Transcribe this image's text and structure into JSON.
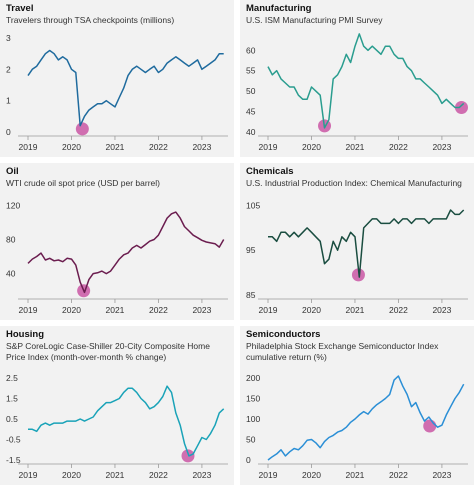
{
  "chart_data": [
    {
      "type": "line",
      "title": "Travel",
      "subtitle": "Travelers through TSA checkpoints (millions)",
      "color": "#1f6b9e",
      "highlight_color": "#cc5fa8",
      "ylim": [
        0,
        3
      ],
      "yticks": [
        "0",
        "1",
        "2",
        "3"
      ],
      "ytick_values": [
        0,
        1,
        2,
        3
      ],
      "xlim": [
        2019,
        2023.6
      ],
      "xticks": [
        "2019",
        "2020",
        "2021",
        "2022",
        "2023"
      ],
      "xtick_values": [
        2019,
        2020,
        2021,
        2022,
        2023
      ],
      "x": [
        2019.0,
        2019.1,
        2019.2,
        2019.3,
        2019.4,
        2019.5,
        2019.6,
        2019.7,
        2019.8,
        2019.9,
        2020.0,
        2020.1,
        2020.2,
        2020.3,
        2020.4,
        2020.5,
        2020.6,
        2020.7,
        2020.8,
        2020.9,
        2021.0,
        2021.1,
        2021.2,
        2021.3,
        2021.4,
        2021.5,
        2021.6,
        2021.7,
        2021.8,
        2021.9,
        2022.0,
        2022.1,
        2022.2,
        2022.3,
        2022.4,
        2022.5,
        2022.6,
        2022.7,
        2022.8,
        2022.9,
        2023.0,
        2023.1,
        2023.2,
        2023.3,
        2023.4,
        2023.5
      ],
      "values": [
        1.8,
        2.0,
        2.1,
        2.3,
        2.5,
        2.6,
        2.5,
        2.3,
        2.4,
        2.3,
        2.0,
        1.9,
        0.2,
        0.5,
        0.7,
        0.8,
        0.9,
        0.9,
        1.0,
        0.9,
        0.8,
        1.1,
        1.4,
        1.8,
        2.0,
        2.1,
        2.0,
        1.9,
        2.0,
        2.1,
        1.9,
        2.0,
        2.2,
        2.3,
        2.4,
        2.3,
        2.2,
        2.1,
        2.2,
        2.3,
        2.0,
        2.1,
        2.2,
        2.3,
        2.5,
        2.5
      ],
      "highlight": {
        "x": 2020.25,
        "y": 0.1
      }
    },
    {
      "type": "line",
      "title": "Manufacturing",
      "subtitle": "U.S. ISM Manufacturing PMI Survey",
      "color": "#2a9d8f",
      "highlight_color": "#cc5fa8",
      "ylim": [
        40,
        63
      ],
      "yticks": [
        "40",
        "45",
        "50",
        "55",
        "60"
      ],
      "ytick_values": [
        40,
        45,
        50,
        55,
        60
      ],
      "xlim": [
        2019,
        2023.6
      ],
      "xticks": [
        "2019",
        "2020",
        "2021",
        "2022",
        "2023"
      ],
      "xtick_values": [
        2019,
        2020,
        2021,
        2022,
        2023
      ],
      "x": [
        2019.0,
        2019.1,
        2019.2,
        2019.3,
        2019.4,
        2019.5,
        2019.6,
        2019.7,
        2019.8,
        2019.9,
        2020.0,
        2020.1,
        2020.2,
        2020.3,
        2020.4,
        2020.5,
        2020.6,
        2020.7,
        2020.8,
        2020.9,
        2021.0,
        2021.1,
        2021.2,
        2021.3,
        2021.4,
        2021.5,
        2021.6,
        2021.7,
        2021.8,
        2021.9,
        2022.0,
        2022.1,
        2022.2,
        2022.3,
        2022.4,
        2022.5,
        2022.6,
        2022.7,
        2022.8,
        2022.9,
        2023.0,
        2023.1,
        2023.2,
        2023.3,
        2023.4,
        2023.5
      ],
      "values": [
        56,
        54,
        55,
        53,
        52,
        51,
        51,
        49,
        48,
        48,
        51,
        50,
        49,
        41,
        43,
        53,
        54,
        56,
        59,
        57,
        61,
        64,
        61,
        60,
        61,
        60,
        59,
        61,
        61,
        59,
        58,
        58,
        56,
        55,
        53,
        53,
        52,
        51,
        50,
        49,
        47,
        48,
        47,
        46,
        46,
        47
      ],
      "highlight": {
        "x": 2020.3,
        "y": 41.5
      },
      "highlight2": {
        "x": 2023.45,
        "y": 46
      }
    },
    {
      "type": "line",
      "title": "Oil",
      "subtitle": "WTI crude oil spot price (USD per barrel)",
      "color": "#6b1d4f",
      "highlight_color": "#cc5fa8",
      "ylim": [
        15,
        125
      ],
      "yticks": [
        "40",
        "80",
        "120"
      ],
      "ytick_values": [
        40,
        80,
        120
      ],
      "xlim": [
        2019,
        2023.6
      ],
      "xticks": [
        "2019",
        "2020",
        "2021",
        "2022",
        "2023"
      ],
      "xtick_values": [
        2019,
        2020,
        2021,
        2022,
        2023
      ],
      "x": [
        2019.0,
        2019.1,
        2019.2,
        2019.3,
        2019.4,
        2019.5,
        2019.6,
        2019.7,
        2019.8,
        2019.9,
        2020.0,
        2020.1,
        2020.2,
        2020.3,
        2020.4,
        2020.5,
        2020.6,
        2020.7,
        2020.8,
        2020.9,
        2021.0,
        2021.1,
        2021.2,
        2021.3,
        2021.4,
        2021.5,
        2021.6,
        2021.7,
        2021.8,
        2021.9,
        2022.0,
        2022.1,
        2022.2,
        2022.3,
        2022.4,
        2022.5,
        2022.6,
        2022.7,
        2022.8,
        2022.9,
        2023.0,
        2023.1,
        2023.2,
        2023.3,
        2023.4,
        2023.5
      ],
      "values": [
        52,
        57,
        60,
        64,
        56,
        58,
        55,
        56,
        54,
        58,
        57,
        50,
        30,
        18,
        33,
        40,
        41,
        43,
        40,
        43,
        50,
        57,
        62,
        64,
        70,
        73,
        70,
        74,
        78,
        80,
        85,
        95,
        105,
        110,
        112,
        105,
        95,
        90,
        85,
        82,
        79,
        77,
        76,
        75,
        71,
        80
      ],
      "highlight": {
        "x": 2020.28,
        "y": 20
      }
    },
    {
      "type": "line",
      "title": "Chemicals",
      "subtitle": "U.S. Industrial Production Index: Chemical Manufacturing",
      "color": "#1a4d40",
      "highlight_color": "#cc5fa8",
      "ylim": [
        85,
        106
      ],
      "yticks": [
        "85",
        "95",
        "105"
      ],
      "ytick_values": [
        85,
        95,
        105
      ],
      "xlim": [
        2019,
        2023.6
      ],
      "xticks": [
        "2019",
        "2020",
        "2021",
        "2022",
        "2023"
      ],
      "xtick_values": [
        2019,
        2020,
        2021,
        2022,
        2023
      ],
      "x": [
        2019.0,
        2019.1,
        2019.2,
        2019.3,
        2019.4,
        2019.5,
        2019.6,
        2019.7,
        2019.8,
        2019.9,
        2020.0,
        2020.1,
        2020.2,
        2020.3,
        2020.4,
        2020.5,
        2020.6,
        2020.7,
        2020.8,
        2020.9,
        2021.0,
        2021.1,
        2021.2,
        2021.3,
        2021.4,
        2021.5,
        2021.6,
        2021.7,
        2021.8,
        2021.9,
        2022.0,
        2022.1,
        2022.2,
        2022.3,
        2022.4,
        2022.5,
        2022.6,
        2022.7,
        2022.8,
        2022.9,
        2023.0,
        2023.1,
        2023.2,
        2023.3,
        2023.4,
        2023.5
      ],
      "values": [
        98,
        98,
        97,
        99,
        99,
        98,
        99,
        98,
        99,
        100,
        99,
        98,
        97,
        92,
        93,
        97,
        95,
        98,
        97,
        99,
        98,
        89,
        100,
        101,
        102,
        102,
        101,
        101,
        101,
        102,
        101,
        102,
        102,
        101,
        102,
        102,
        102,
        101,
        102,
        102,
        102,
        102,
        104,
        103,
        103,
        104
      ],
      "highlight": {
        "x": 2021.08,
        "y": 89.5
      }
    },
    {
      "type": "line",
      "title": "Housing",
      "subtitle": "S&P CoreLogic Case-Shiller 20-City Composite Home Price Index (month-over-month % change)",
      "color": "#1aa3b8",
      "highlight_color": "#cc5fa8",
      "ylim": [
        -1.5,
        2.6
      ],
      "yticks": [
        "-1.5",
        "-0.5",
        "0.5",
        "1.5",
        "2.5"
      ],
      "ytick_values": [
        -1.5,
        -0.5,
        0.5,
        1.5,
        2.5
      ],
      "xlim": [
        2019,
        2023.6
      ],
      "xticks": [
        "2019",
        "2020",
        "2021",
        "2022",
        "2023"
      ],
      "xtick_values": [
        2019,
        2020,
        2021,
        2022,
        2023
      ],
      "x": [
        2019.0,
        2019.1,
        2019.2,
        2019.3,
        2019.4,
        2019.5,
        2019.6,
        2019.7,
        2019.8,
        2019.9,
        2020.0,
        2020.1,
        2020.2,
        2020.3,
        2020.4,
        2020.5,
        2020.6,
        2020.7,
        2020.8,
        2020.9,
        2021.0,
        2021.1,
        2021.2,
        2021.3,
        2021.4,
        2021.5,
        2021.6,
        2021.7,
        2021.8,
        2021.9,
        2022.0,
        2022.1,
        2022.2,
        2022.3,
        2022.4,
        2022.5,
        2022.6,
        2022.7,
        2022.8,
        2022.9,
        2023.0,
        2023.1,
        2023.2,
        2023.3,
        2023.4,
        2023.5
      ],
      "values": [
        0.0,
        0.0,
        -0.1,
        0.2,
        0.3,
        0.2,
        0.3,
        0.3,
        0.3,
        0.4,
        0.4,
        0.4,
        0.5,
        0.4,
        0.5,
        0.6,
        0.9,
        1.1,
        1.3,
        1.3,
        1.4,
        1.5,
        1.8,
        2.0,
        2.0,
        1.8,
        1.5,
        1.3,
        1.0,
        1.1,
        1.3,
        1.6,
        2.1,
        1.8,
        0.8,
        0.2,
        -0.7,
        -1.3,
        -1.2,
        -0.8,
        -0.4,
        -0.5,
        -0.2,
        0.2,
        0.8,
        1.0
      ],
      "highlight": {
        "x": 2022.68,
        "y": -1.3
      }
    },
    {
      "type": "line",
      "title": "Semiconductors",
      "subtitle": "Philadelphia Stock Exchange Semiconductor Index cumulative return (%)",
      "color": "#2b8fd6",
      "highlight_color": "#cc5fa8",
      "ylim": [
        0,
        205
      ],
      "yticks": [
        "0",
        "50",
        "100",
        "150",
        "200"
      ],
      "ytick_values": [
        0,
        50,
        100,
        150,
        200
      ],
      "xlim": [
        2019,
        2023.6
      ],
      "xticks": [
        "2019",
        "2020",
        "2021",
        "2022",
        "2023"
      ],
      "xtick_values": [
        2019,
        2020,
        2021,
        2022,
        2023
      ],
      "x": [
        2019.0,
        2019.1,
        2019.2,
        2019.3,
        2019.4,
        2019.5,
        2019.6,
        2019.7,
        2019.8,
        2019.9,
        2020.0,
        2020.1,
        2020.2,
        2020.3,
        2020.4,
        2020.5,
        2020.6,
        2020.7,
        2020.8,
        2020.9,
        2021.0,
        2021.1,
        2021.2,
        2021.3,
        2021.4,
        2021.5,
        2021.6,
        2021.7,
        2021.8,
        2021.9,
        2022.0,
        2022.1,
        2022.2,
        2022.3,
        2022.4,
        2022.5,
        2022.6,
        2022.7,
        2022.8,
        2022.9,
        2023.0,
        2023.1,
        2023.2,
        2023.3,
        2023.4,
        2023.5
      ],
      "values": [
        0,
        8,
        15,
        25,
        10,
        20,
        28,
        25,
        35,
        48,
        50,
        42,
        30,
        45,
        55,
        60,
        68,
        72,
        80,
        92,
        100,
        110,
        118,
        112,
        125,
        135,
        142,
        150,
        160,
        195,
        205,
        180,
        160,
        130,
        140,
        115,
        95,
        105,
        90,
        80,
        85,
        110,
        130,
        150,
        165,
        185
      ],
      "highlight": {
        "x": 2022.72,
        "y": 83
      }
    }
  ]
}
